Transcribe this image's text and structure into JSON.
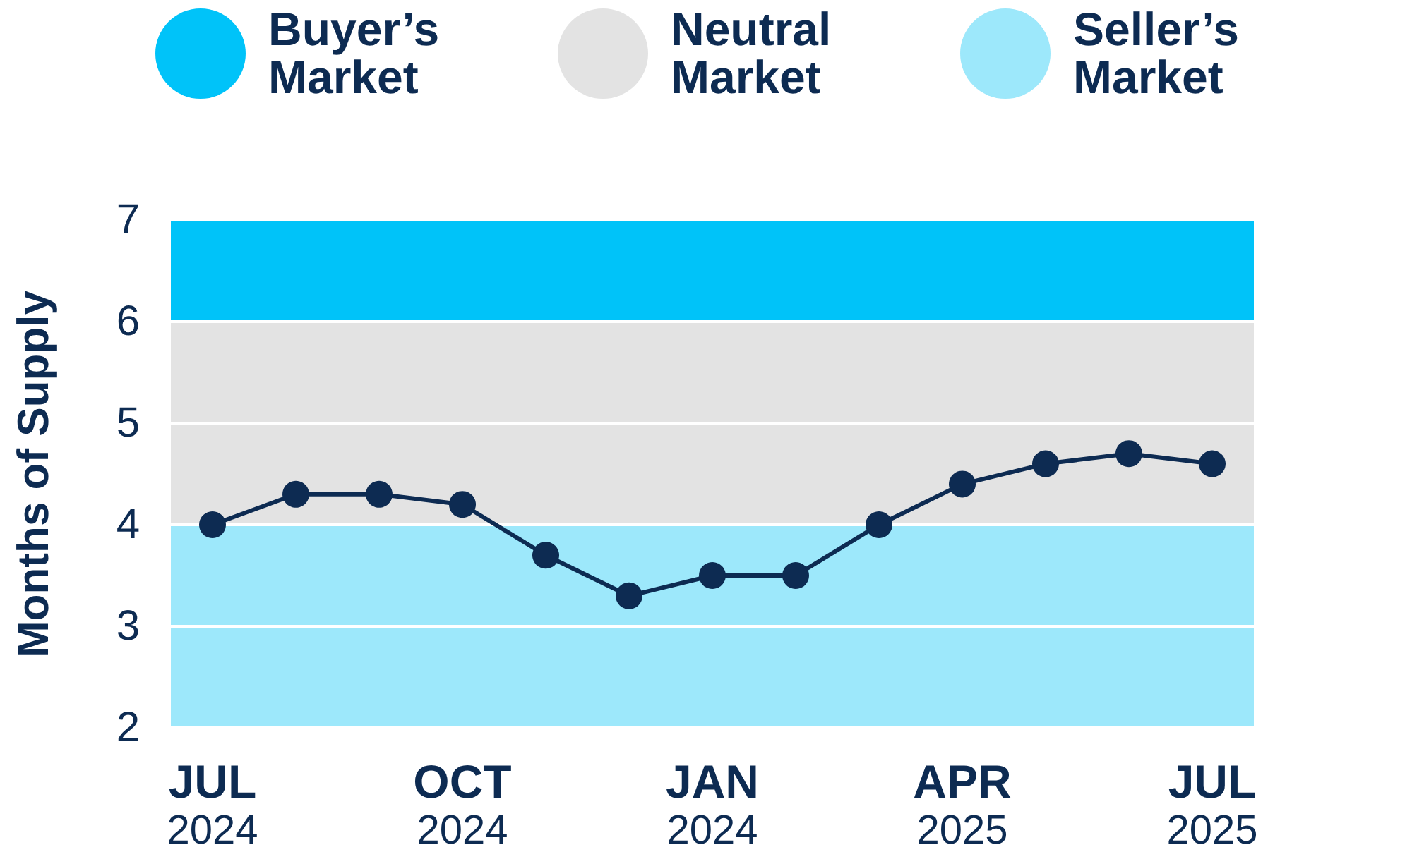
{
  "chart_data": {
    "type": "line",
    "ylabel": "Months of Supply",
    "categories": [
      "JUL 2024",
      null,
      null,
      "OCT 2024",
      null,
      null,
      "JAN 2024",
      null,
      null,
      "APR 2025",
      null,
      null,
      "JUL 2025"
    ],
    "series": [
      {
        "color": "#0d2b52",
        "values": [
          4.0,
          4.3,
          4.3,
          4.2,
          3.7,
          3.3,
          3.5,
          3.5,
          4.0,
          4.4,
          4.6,
          4.7,
          4.6
        ]
      }
    ],
    "ylim": [
      2,
      7
    ],
    "yticks": [
      2,
      3,
      4,
      5,
      6,
      7
    ],
    "bands": [
      {
        "axis": "y",
        "from": 6,
        "to": 7,
        "label": "Buyer’s Market",
        "color": "#00c3f9"
      },
      {
        "axis": "y",
        "from": 4,
        "to": 6,
        "label": "Neutral Market",
        "color": "#e3e3e3"
      },
      {
        "axis": "y",
        "from": 2,
        "to": 4,
        "label": "Seller’s Market",
        "color": "#9de8fb"
      }
    ],
    "grid": "y",
    "legend": "top",
    "marker": "circle",
    "line_style": "solid"
  }
}
